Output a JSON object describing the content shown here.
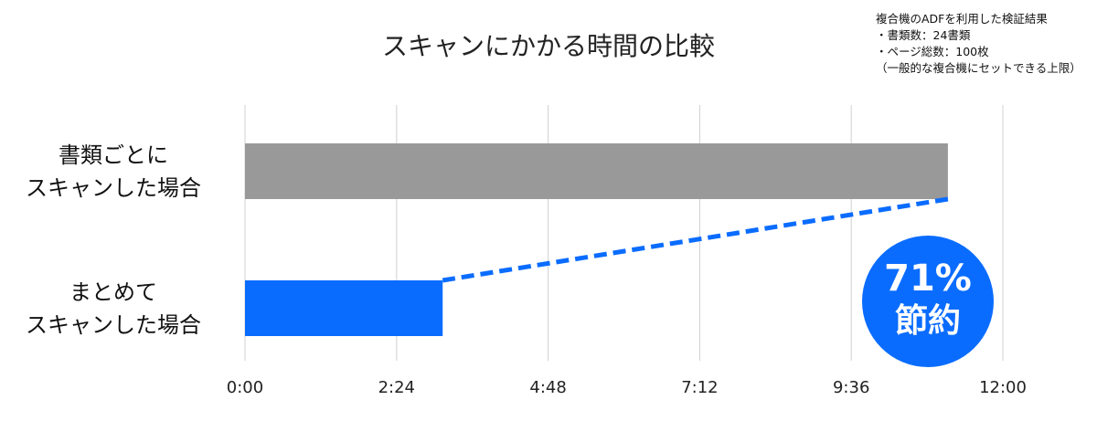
{
  "chart_data": {
    "type": "hbar",
    "title": "スキャンにかかる時間の比較",
    "notes": [
      "複合機のADFを利用した検証結果",
      "・書類数：24書類",
      "・ページ総数：100枚",
      "（一般的な複合機にセットできる上限）"
    ],
    "categories": [
      "書類ごとに\nスキャンした場合",
      "まとめて\nスキャンした場合"
    ],
    "values": [
      11.13,
      3.13
    ],
    "colors": [
      "#999999",
      "#0a6cff"
    ],
    "xlim": [
      0,
      12
    ],
    "xticks": [
      {
        "value": 0,
        "label": "0:00"
      },
      {
        "value": 2.4,
        "label": "2:24"
      },
      {
        "value": 4.8,
        "label": "4:48"
      },
      {
        "value": 7.2,
        "label": "7:12"
      },
      {
        "value": 9.6,
        "label": "9:36"
      },
      {
        "value": 12,
        "label": "12:00"
      }
    ],
    "grid": true,
    "annotation": {
      "lines": [
        "71%",
        "節約"
      ],
      "color": "#0a6cff"
    }
  }
}
